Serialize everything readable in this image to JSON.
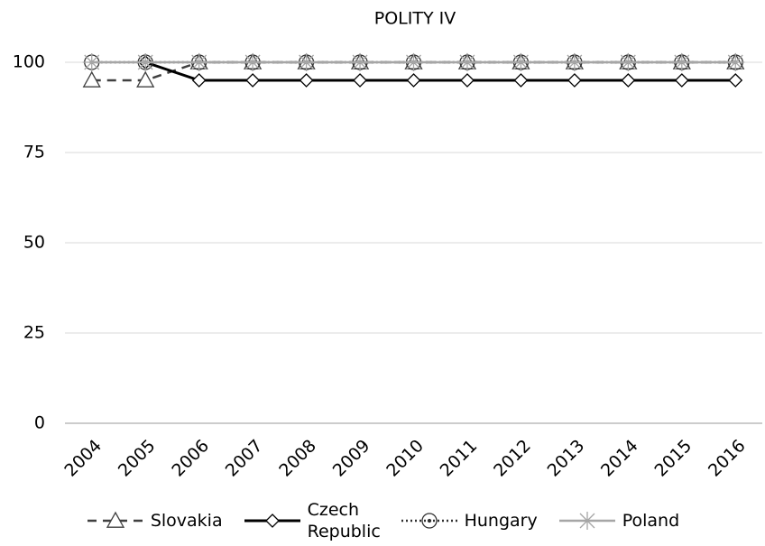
{
  "chart_data": {
    "type": "line",
    "title": "POLITY IV",
    "categories": [
      "2004",
      "2005",
      "2006",
      "2007",
      "2008",
      "2009",
      "2010",
      "2011",
      "2012",
      "2013",
      "2014",
      "2015",
      "2016"
    ],
    "series": [
      {
        "name": "Slovakia",
        "color": "#404040",
        "dash": "10,7",
        "marker": "triangle",
        "values": [
          95,
          95,
          100,
          100,
          100,
          100,
          100,
          100,
          100,
          100,
          100,
          100,
          100
        ]
      },
      {
        "name": "Czech Republic",
        "color": "#000000",
        "dash": "none",
        "marker": "diamond",
        "values": [
          null,
          100,
          95,
          95,
          95,
          95,
          95,
          95,
          95,
          95,
          95,
          95,
          95
        ]
      },
      {
        "name": "Hungary",
        "color": "#303030",
        "dash": "2,3",
        "marker": "circle",
        "values": [
          100,
          100,
          100,
          100,
          100,
          100,
          100,
          100,
          100,
          100,
          100,
          100,
          100
        ]
      },
      {
        "name": "Poland",
        "color": "#a6a6a6",
        "dash": "none",
        "marker": "star",
        "values": [
          100,
          100,
          100,
          100,
          100,
          100,
          100,
          100,
          100,
          100,
          100,
          100,
          100
        ]
      }
    ],
    "ylim": [
      0,
      100
    ],
    "yticks": [
      0,
      25,
      50,
      75,
      100
    ],
    "grid": true,
    "legend": "bottom"
  }
}
